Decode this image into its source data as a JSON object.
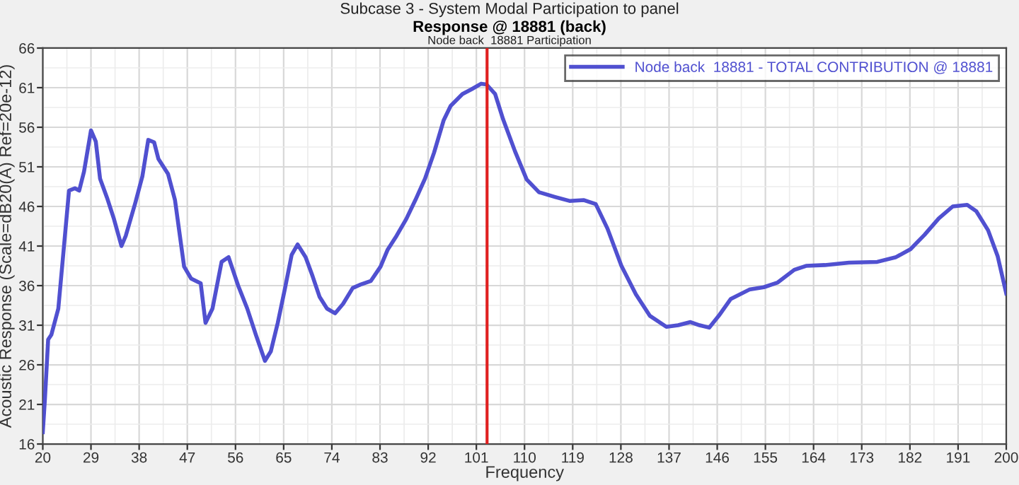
{
  "chart_data": {
    "type": "line",
    "title": "Subcase 3 - System Modal Participation to panel",
    "subtitle": "Response @ 18881 (back)",
    "annotations": [
      "Node back  18881 Participation"
    ],
    "xlabel": "Frequency",
    "ylabel": "Acoustic Response (Scale=dB20(A) Ref=20e-12)",
    "xlim": [
      20,
      200
    ],
    "xticks": [
      20,
      29,
      38,
      47,
      56,
      65,
      74,
      83,
      92,
      101,
      110,
      119,
      128,
      137,
      146,
      155,
      164,
      173,
      182,
      191,
      200
    ],
    "ylim": [
      16,
      66
    ],
    "yticks": [
      16,
      21,
      26,
      31,
      36,
      41,
      46,
      51,
      56,
      61,
      66
    ],
    "grid": true,
    "legend": "top right",
    "line_style": "solid",
    "marker": "none",
    "ref_lines": [
      {
        "axis": "x",
        "value": 103,
        "color": "#e02020"
      }
    ],
    "series": [
      {
        "name": "Node back  18881 - TOTAL CONTRIBUTION @ 18881",
        "color": "#5050d0",
        "x": [
          20,
          20.4,
          21.0,
          21.6,
          22.9,
          24.9,
          26.0,
          26.8,
          27.7,
          29.0,
          29.9,
          30.7,
          32.0,
          33.3,
          34.7,
          35.5,
          37.3,
          38.6,
          39.7,
          40.8,
          41.6,
          43.4,
          44.7,
          46.4,
          47.7,
          49.5,
          50.4,
          51.7,
          53.4,
          54.7,
          56.5,
          58.2,
          59.8,
          61.5,
          62.6,
          63.9,
          65.2,
          66.5,
          67.6,
          69.1,
          70.4,
          71.7,
          73.1,
          74.6,
          76.1,
          77.9,
          79.6,
          81.3,
          83.1,
          84.4,
          86.1,
          87.9,
          89.6,
          91.4,
          93.1,
          94.9,
          96.2,
          98.4,
          100.1,
          101.9,
          102.9,
          104.5,
          106.0,
          108.2,
          110.4,
          112.7,
          115.7,
          118.4,
          121.1,
          123.3,
          125.5,
          128.1,
          130.8,
          133.4,
          136.5,
          138.7,
          141.0,
          142.7,
          144.5,
          146.3,
          148.5,
          152.0,
          154.7,
          157.3,
          160.4,
          162.6,
          166.1,
          170.6,
          175.9,
          179.4,
          182.1,
          184.7,
          187.4,
          190.0,
          192.7,
          194.4,
          196.6,
          198.4,
          200
        ],
        "values": [
          17.5,
          21.7,
          29.2,
          29.8,
          33.1,
          48.0,
          48.3,
          48.0,
          50.4,
          55.6,
          54.2,
          49.5,
          47.1,
          44.4,
          41.0,
          42.3,
          46.5,
          49.8,
          54.4,
          54.1,
          52.0,
          50.1,
          46.8,
          38.4,
          36.9,
          36.3,
          31.3,
          33.1,
          39.0,
          39.6,
          36.0,
          33.1,
          29.8,
          26.5,
          27.7,
          31.3,
          35.5,
          39.9,
          41.2,
          39.6,
          37.2,
          34.6,
          33.1,
          32.5,
          33.7,
          35.7,
          36.2,
          36.6,
          38.4,
          40.5,
          42.3,
          44.4,
          46.8,
          49.5,
          52.8,
          56.9,
          58.7,
          60.2,
          60.8,
          61.5,
          61.4,
          60.2,
          57.0,
          53.0,
          49.4,
          47.8,
          47.2,
          46.7,
          46.8,
          46.3,
          43.2,
          38.5,
          34.9,
          32.2,
          30.8,
          31.0,
          31.4,
          31.0,
          30.7,
          32.2,
          34.3,
          35.5,
          35.8,
          36.4,
          38.0,
          38.5,
          38.6,
          38.9,
          39.0,
          39.6,
          40.6,
          42.4,
          44.5,
          46.0,
          46.2,
          45.4,
          43.0,
          39.7,
          35.0
        ]
      }
    ]
  }
}
